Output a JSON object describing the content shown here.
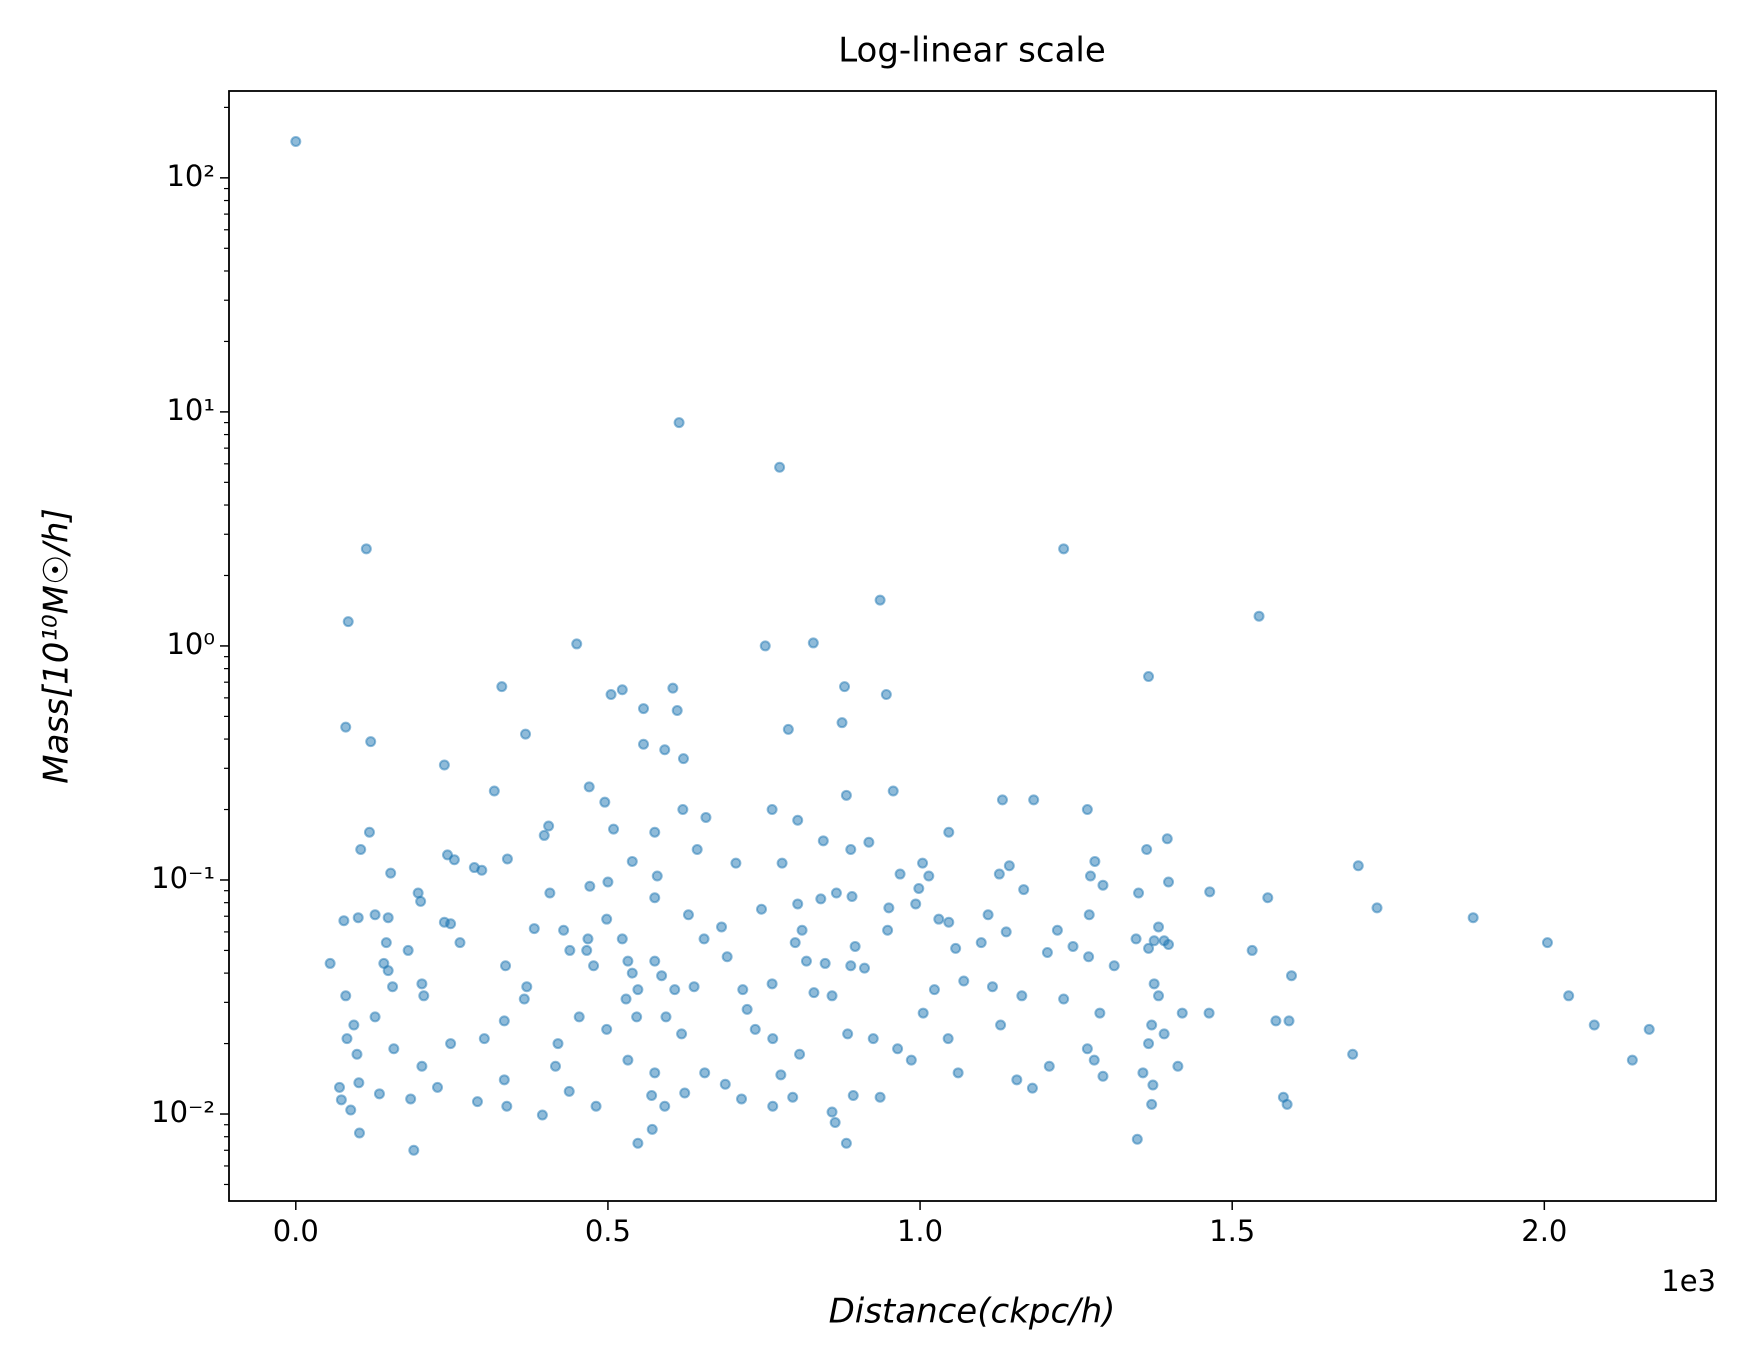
{
  "chart_data": {
    "type": "scatter",
    "title": "Log-linear scale",
    "x_label": "Distance(ckpc/h)",
    "y_label": "Mass[10¹⁰M☉/h]",
    "x_offset_text": "1e3",
    "y_scale": "log",
    "color": "#1f77b4",
    "xlim": [
      -107,
      2275
    ],
    "ylim": [
      0.00425,
      235
    ],
    "xticks": [
      {
        "value": 0,
        "label": "0.0"
      },
      {
        "value": 500,
        "label": "0.5"
      },
      {
        "value": 1000,
        "label": "1.0"
      },
      {
        "value": 1500,
        "label": "1.5"
      },
      {
        "value": 2000,
        "label": "2.0"
      }
    ],
    "yticks": [
      {
        "value": 0.01,
        "label": "10⁻²"
      },
      {
        "value": 0.1,
        "label": "10⁻¹"
      },
      {
        "value": 1,
        "label": "10⁰"
      },
      {
        "value": 10,
        "label": "10¹"
      },
      {
        "value": 100,
        "label": "10²"
      }
    ],
    "x": [
      0,
      614,
      775,
      113,
      1230,
      936,
      1543,
      84,
      450,
      752,
      829,
      1366,
      330,
      604,
      879,
      523,
      505,
      946,
      557,
      611,
      875,
      80,
      789,
      120,
      368,
      557,
      591,
      621,
      238,
      470,
      318,
      957,
      1132,
      1182,
      495,
      882,
      620,
      763,
      1268,
      657,
      804,
      118,
      509,
      575,
      1046,
      1396,
      845,
      398,
      918,
      405,
      104,
      643,
      889,
      1363,
      243,
      254,
      339,
      539,
      705,
      779,
      1004,
      1143,
      1280,
      1702,
      286,
      298,
      1273,
      1014,
      579,
      968,
      152,
      1127,
      1398,
      500,
      1293,
      471,
      998,
      1166,
      1464,
      407,
      196,
      866,
      891,
      1350,
      575,
      1557,
      200,
      841,
      804,
      993,
      1732,
      498,
      77,
      127,
      100,
      148,
      238,
      248,
      682,
      629,
      746,
      950,
      1109,
      1886,
      1046,
      1030,
      1271,
      1382,
      382,
      811,
      948,
      1220,
      1138,
      429,
      523,
      468,
      654,
      800,
      1346,
      1398,
      145,
      263,
      1098,
      1391,
      2005,
      1375,
      896,
      1245,
      466,
      1532,
      180,
      1204,
      439,
      1366,
      1057,
      691,
      1270,
      889,
      55,
      141,
      336,
      532,
      575,
      818,
      848,
      1311,
      148,
      477,
      539,
      911,
      1595,
      586,
      370,
      607,
      155,
      202,
      638,
      1070,
      1116,
      1375,
      548,
      1023,
      763,
      80,
      205,
      716,
      859,
      1163,
      1382,
      2039,
      830,
      529,
      366,
      1230,
      723,
      454,
      1463,
      1420,
      1288,
      1005,
      546,
      593,
      127,
      1570,
      1591,
      334,
      1371,
      93,
      1129,
      498,
      2080,
      2168,
      736,
      82,
      884,
      302,
      618,
      1391,
      925,
      420,
      1366,
      1268,
      1045,
      248,
      764,
      964,
      157,
      1693,
      98,
      807,
      532,
      1279,
      2141,
      986,
      416,
      1413,
      1207,
      202,
      1061,
      575,
      655,
      1357,
      1293,
      777,
      1155,
      101,
      334,
      688,
      1373,
      70,
      227,
      1180,
      134,
      438,
      570,
      623,
      893,
      1582,
      796,
      73,
      184,
      714,
      936,
      291,
      1371,
      1588,
      338,
      481,
      591,
      764,
      88,
      859,
      395,
      864,
      571,
      102,
      1348,
      548,
      882,
      189
    ],
    "values": [
      143,
      9.0,
      5.8,
      2.6,
      2.6,
      1.57,
      1.34,
      1.27,
      1.02,
      1.0,
      1.03,
      0.74,
      0.67,
      0.66,
      0.67,
      0.65,
      0.62,
      0.62,
      0.54,
      0.53,
      0.47,
      0.45,
      0.44,
      0.39,
      0.42,
      0.38,
      0.36,
      0.33,
      0.31,
      0.25,
      0.24,
      0.24,
      0.22,
      0.22,
      0.215,
      0.23,
      0.2,
      0.2,
      0.2,
      0.185,
      0.18,
      0.16,
      0.165,
      0.16,
      0.16,
      0.15,
      0.147,
      0.155,
      0.145,
      0.17,
      0.135,
      0.135,
      0.135,
      0.135,
      0.128,
      0.122,
      0.123,
      0.12,
      0.118,
      0.118,
      0.118,
      0.115,
      0.12,
      0.115,
      0.113,
      0.11,
      0.104,
      0.104,
      0.104,
      0.106,
      0.107,
      0.106,
      0.098,
      0.098,
      0.095,
      0.094,
      0.092,
      0.091,
      0.089,
      0.088,
      0.088,
      0.088,
      0.085,
      0.088,
      0.084,
      0.084,
      0.081,
      0.083,
      0.079,
      0.079,
      0.076,
      0.068,
      0.067,
      0.071,
      0.069,
      0.069,
      0.066,
      0.065,
      0.063,
      0.071,
      0.075,
      0.076,
      0.071,
      0.069,
      0.066,
      0.068,
      0.071,
      0.063,
      0.062,
      0.061,
      0.061,
      0.061,
      0.06,
      0.061,
      0.056,
      0.056,
      0.056,
      0.054,
      0.056,
      0.053,
      0.054,
      0.054,
      0.054,
      0.055,
      0.054,
      0.055,
      0.052,
      0.052,
      0.05,
      0.05,
      0.05,
      0.049,
      0.05,
      0.051,
      0.051,
      0.047,
      0.047,
      0.043,
      0.044,
      0.044,
      0.043,
      0.045,
      0.045,
      0.045,
      0.044,
      0.043,
      0.041,
      0.043,
      0.04,
      0.042,
      0.039,
      0.039,
      0.035,
      0.034,
      0.035,
      0.036,
      0.035,
      0.037,
      0.035,
      0.036,
      0.034,
      0.034,
      0.036,
      0.032,
      0.032,
      0.034,
      0.032,
      0.032,
      0.032,
      0.032,
      0.033,
      0.031,
      0.031,
      0.031,
      0.028,
      0.026,
      0.027,
      0.027,
      0.027,
      0.027,
      0.026,
      0.026,
      0.026,
      0.025,
      0.025,
      0.025,
      0.024,
      0.024,
      0.024,
      0.023,
      0.024,
      0.023,
      0.023,
      0.021,
      0.022,
      0.021,
      0.022,
      0.022,
      0.021,
      0.02,
      0.02,
      0.019,
      0.021,
      0.02,
      0.021,
      0.019,
      0.019,
      0.018,
      0.018,
      0.018,
      0.017,
      0.017,
      0.017,
      0.017,
      0.016,
      0.016,
      0.016,
      0.016,
      0.015,
      0.015,
      0.015,
      0.015,
      0.0145,
      0.0147,
      0.014,
      0.0136,
      0.014,
      0.0134,
      0.0133,
      0.013,
      0.013,
      0.0129,
      0.0122,
      0.0125,
      0.012,
      0.0123,
      0.012,
      0.0118,
      0.0118,
      0.0115,
      0.0116,
      0.0116,
      0.0118,
      0.0113,
      0.011,
      0.011,
      0.0108,
      0.0108,
      0.0108,
      0.0108,
      0.0104,
      0.0102,
      0.0099,
      0.0092,
      0.0086,
      0.0083,
      0.0078,
      0.0075,
      0.0075,
      0.007
    ]
  }
}
